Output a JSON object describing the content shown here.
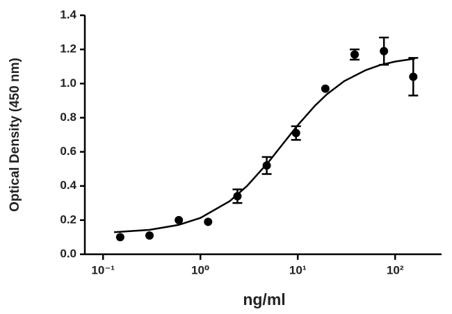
{
  "chart_data": {
    "type": "scatter",
    "xlabel": "ng/ml",
    "ylabel": "Optical Density (450 nm)",
    "x": [
      0.15,
      0.3,
      0.6,
      1.2,
      2.4,
      4.8,
      9.6,
      19.2,
      38.4,
      76.8,
      153.6
    ],
    "values": [
      0.1,
      0.11,
      0.2,
      0.19,
      0.34,
      0.52,
      0.71,
      0.97,
      1.17,
      1.19,
      1.04
    ],
    "errors": [
      null,
      null,
      null,
      null,
      0.04,
      0.05,
      0.04,
      null,
      0.03,
      0.08,
      0.11
    ],
    "fit_x": [
      0.13,
      0.3,
      0.6,
      1,
      2,
      3,
      5,
      7,
      10,
      15,
      20,
      30,
      50,
      70,
      100,
      160
    ],
    "fit_values": [
      0.129,
      0.143,
      0.172,
      0.213,
      0.311,
      0.399,
      0.54,
      0.645,
      0.756,
      0.87,
      0.938,
      1.014,
      1.079,
      1.108,
      1.129,
      1.146
    ],
    "color": "#000000",
    "xscale": "log",
    "xlim": [
      0.065,
      300
    ],
    "ylim": [
      0,
      1.4
    ],
    "xticks": [
      {
        "value": 0.1,
        "label": "10⁻¹"
      },
      {
        "value": 1,
        "label": "10⁰"
      },
      {
        "value": 10,
        "label": "10¹"
      },
      {
        "value": 100,
        "label": "10²"
      }
    ],
    "yticks": [
      {
        "value": 0,
        "label": "0.0"
      },
      0.2,
      0.4,
      0.6,
      0.8,
      {
        "value": 1,
        "label": "1.0"
      },
      1.2,
      1.4
    ]
  }
}
